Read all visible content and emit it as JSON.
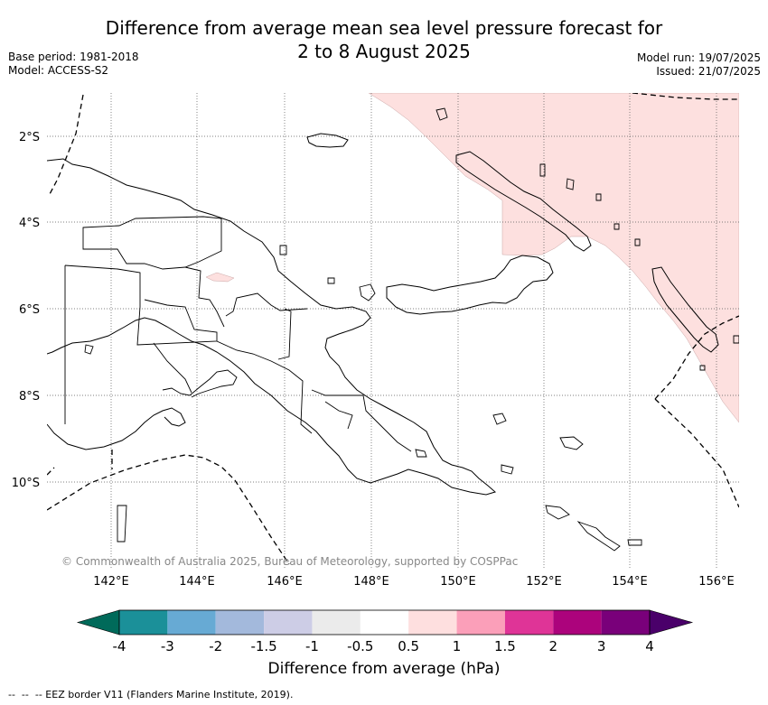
{
  "title": {
    "line1": "Difference from average mean sea level pressure forecast for",
    "line2": "2 to 8 August 2025"
  },
  "meta": {
    "base_period": "Base period: 1981-2018",
    "model": "Model: ACCESS-S2",
    "model_run": "Model run: 19/07/2025",
    "issued": "Issued: 21/07/2025"
  },
  "map": {
    "lat_labels": [
      "2°S",
      "4°S",
      "6°S",
      "8°S",
      "10°S"
    ],
    "lon_labels": [
      "142°E",
      "144°E",
      "146°E",
      "148°E",
      "150°E",
      "152°E",
      "154°E",
      "156°E"
    ],
    "copyright": "© Commonwealth of Australia 2025, Bureau of Meteorology, supported by COSPPac",
    "anomaly_region_category": "0.5 to 1 hPa",
    "colors": {
      "land_outline": "#000000",
      "positive_anomaly_fill": "#fde0df",
      "gridline": "#555555"
    }
  },
  "colorbar": {
    "title": "Difference from average (hPa)",
    "ticks": [
      "-4",
      "-3",
      "-2",
      "-1.5",
      "-1",
      "-0.5",
      "0.5",
      "1",
      "1.5",
      "2",
      "3",
      "4"
    ],
    "colors": [
      "#006a5a",
      "#1b9099",
      "#67aad4",
      "#a3b9dc",
      "#cdcde6",
      "#ebebeb",
      "#ffffff",
      "#fedfdf",
      "#fb9fb9",
      "#df3497",
      "#ac037c",
      "#79007a",
      "#4a006a"
    ]
  },
  "footer": {
    "legend_text": "-- EEZ border V11 (Flanders Marine Institute, 2019)."
  }
}
